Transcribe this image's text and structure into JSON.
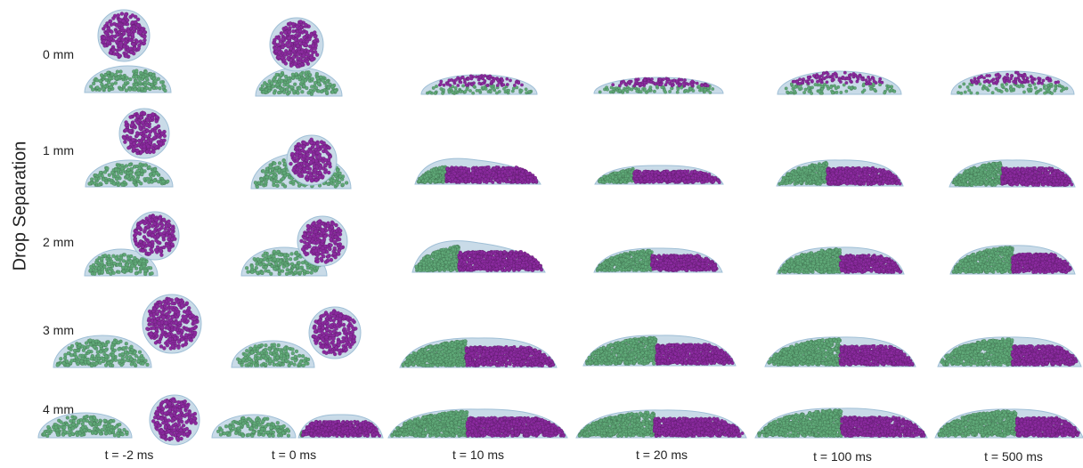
{
  "figure": {
    "y_axis_label": "Drop Separation",
    "row_labels": [
      "0 mm",
      "1 mm",
      "2 mm",
      "3 mm",
      "4 mm"
    ],
    "column_labels": [
      "t = -2 ms",
      "t = 0 ms",
      "t = 10 ms",
      "t = 20 ms",
      "t = 100 ms",
      "t = 500 ms"
    ]
  },
  "colors": {
    "drop_fill": "#c9dbe8",
    "drop_stroke": "#9fbfd6",
    "green_particles": "#5fa877",
    "purple_particles": "#8a2a9e",
    "text": "#222222"
  }
}
